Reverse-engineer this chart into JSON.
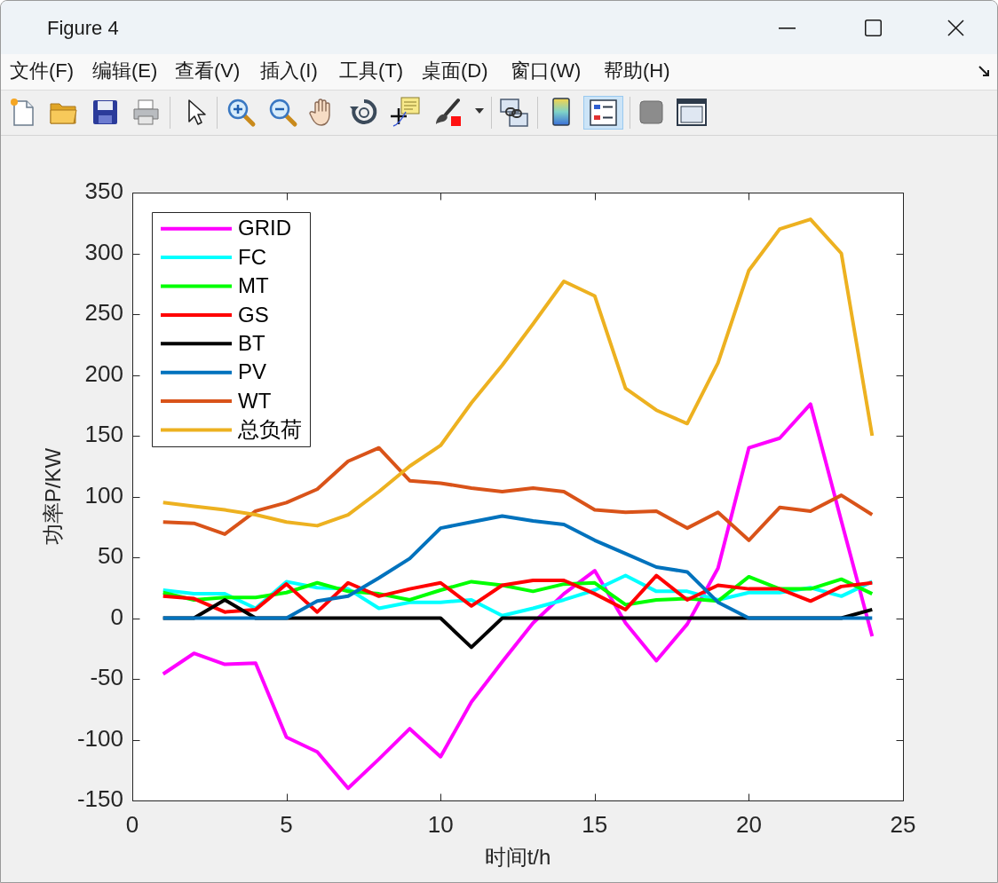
{
  "chart_data": {
    "type": "line",
    "xlabel": "时间t/h",
    "ylabel": "功率P/KW",
    "x": [
      1,
      2,
      3,
      4,
      5,
      6,
      7,
      8,
      9,
      10,
      11,
      12,
      13,
      14,
      15,
      16,
      17,
      18,
      19,
      20,
      21,
      22,
      23,
      24
    ],
    "xlim": [
      0,
      25
    ],
    "xticks": [
      0,
      5,
      10,
      15,
      20,
      25
    ],
    "ylim": [
      -150,
      350
    ],
    "yticks": [
      -150,
      -100,
      -50,
      0,
      50,
      100,
      150,
      200,
      250,
      300,
      350
    ],
    "legend": "top left",
    "series": [
      {
        "name": "GRID",
        "color": "#ff00ff",
        "values": [
          -46,
          -29,
          -38,
          -37,
          -98,
          -110,
          -140,
          -116,
          -91,
          -114,
          -69,
          -36,
          -4,
          20,
          39,
          -4,
          -35,
          -5,
          41,
          140,
          148,
          176,
          80,
          -15
        ]
      },
      {
        "name": "FC",
        "color": "#00ffff",
        "values": [
          23,
          20,
          20,
          8,
          30,
          25,
          24,
          8,
          13,
          13,
          15,
          2,
          8,
          15,
          23,
          35,
          22,
          22,
          15,
          21,
          21,
          25,
          18,
          30
        ]
      },
      {
        "name": "MT",
        "color": "#00ff00",
        "values": [
          21,
          15,
          17,
          17,
          21,
          29,
          22,
          20,
          15,
          23,
          30,
          27,
          22,
          28,
          29,
          11,
          15,
          16,
          14,
          34,
          24,
          24,
          32,
          20
        ]
      },
      {
        "name": "GS",
        "color": "#ff0000",
        "values": [
          18,
          16,
          5,
          7,
          28,
          5,
          29,
          18,
          24,
          29,
          10,
          27,
          31,
          31,
          20,
          7,
          35,
          15,
          27,
          24,
          24,
          14,
          26,
          29
        ]
      },
      {
        "name": "BT",
        "color": "#000000",
        "values": [
          0,
          0,
          15,
          0,
          0,
          0,
          0,
          0,
          0,
          0,
          -24,
          0,
          0,
          0,
          0,
          0,
          0,
          0,
          0,
          0,
          0,
          0,
          0,
          7
        ]
      },
      {
        "name": "PV",
        "color": "#0072bd",
        "values": [
          0,
          0,
          0,
          0,
          0,
          14,
          18,
          33,
          49,
          74,
          79,
          84,
          80,
          77,
          64,
          53,
          42,
          38,
          13,
          0,
          0,
          0,
          0,
          0
        ]
      },
      {
        "name": "WT",
        "color": "#d95319",
        "values": [
          79,
          78,
          69,
          88,
          95,
          106,
          129,
          140,
          113,
          111,
          107,
          104,
          107,
          104,
          89,
          87,
          88,
          74,
          87,
          64,
          91,
          88,
          101,
          85
        ]
      },
      {
        "name": "总负荷",
        "color": "#edb120",
        "values": [
          95,
          92,
          89,
          85,
          79,
          76,
          85,
          104,
          125,
          142,
          177,
          208,
          242,
          277,
          265,
          189,
          171,
          160,
          210,
          286,
          320,
          328,
          300,
          150
        ]
      }
    ],
    "annotations": [
      "Figure 4",
      "文件(F)",
      "编辑(E)",
      "查看(V)",
      "插入(I)",
      "工具(T)",
      "桌面(D)",
      "窗口(W)",
      "帮助(H)"
    ]
  }
}
